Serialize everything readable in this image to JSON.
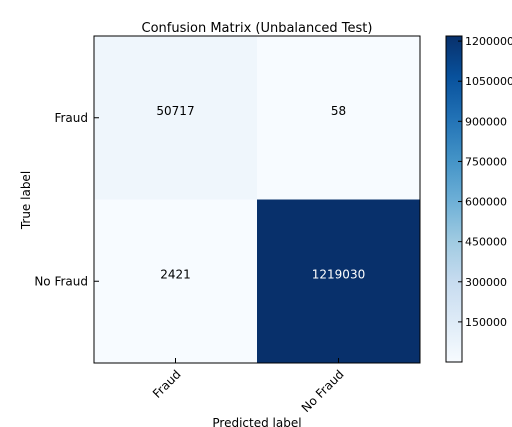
{
  "chart_data": {
    "type": "heatmap",
    "title": "Confusion Matrix (Unbalanced Test)",
    "xlabel": "Predicted label",
    "ylabel": "True label",
    "x_categories": [
      "Fraud",
      "No Fraud"
    ],
    "y_categories": [
      "Fraud",
      "No Fraud"
    ],
    "cells": [
      {
        "row": "Fraud",
        "col": "Fraud",
        "value": 50717,
        "label": "50717"
      },
      {
        "row": "Fraud",
        "col": "No Fraud",
        "value": 58,
        "label": "58"
      },
      {
        "row": "No Fraud",
        "col": "Fraud",
        "value": 2421,
        "label": "2421"
      },
      {
        "row": "No Fraud",
        "col": "No Fraud",
        "value": 1219030,
        "label": "1219030"
      }
    ],
    "colormap": "Blues",
    "colorbar": {
      "range": [
        0,
        1219030
      ],
      "ticks": [
        150000,
        300000,
        450000,
        600000,
        750000,
        900000,
        1050000,
        1200000
      ],
      "tick_labels": [
        "150000",
        "300000",
        "450000",
        "600000",
        "750000",
        "900000",
        "1050000",
        "1200000"
      ]
    },
    "grid": false
  },
  "colors": {
    "cell_fraud_fraud": "#eaf2fb",
    "cell_fraud_nofraud": "#f7fbff",
    "cell_nofraud_fraud": "#f7fbff",
    "cell_nofraud_nofraud": "#10396e",
    "text_dark": "#000000",
    "text_light": "#ffffff"
  }
}
